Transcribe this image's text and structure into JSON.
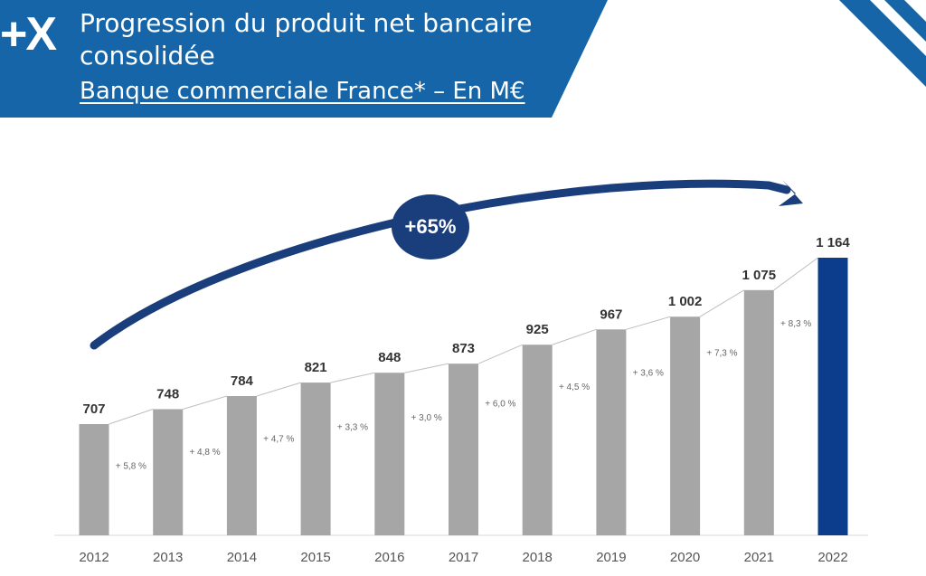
{
  "header": {
    "logo": "+X",
    "title": "Progression du produit net bancaire consolidée",
    "subtitle": "Banque commerciale France* – En M€"
  },
  "colors": {
    "header_blue": "#1565a8",
    "bar_gray": "#a6a6a6",
    "bar_highlight": "#0b3d8c",
    "arrow_navy": "#1a3d7c"
  },
  "chart_data": {
    "type": "bar",
    "categories": [
      "2012",
      "2013",
      "2014",
      "2015",
      "2016",
      "2017",
      "2018",
      "2019",
      "2020",
      "2021",
      "2022"
    ],
    "values": [
      707,
      748,
      784,
      821,
      848,
      873,
      925,
      967,
      1002,
      1075,
      1164
    ],
    "value_labels": [
      "707",
      "748",
      "784",
      "821",
      "848",
      "873",
      "925",
      "967",
      "1 002",
      "1 075",
      "1 164"
    ],
    "growth_labels": [
      "+ 5,8 %",
      "+ 4,8 %",
      "+ 4,7 %",
      "+ 3,3 %",
      "+ 3,0 %",
      "+ 6,0 %",
      "+ 4,5 %",
      "+ 3,6 %",
      "+ 7,3 %",
      "+ 8,3 %"
    ],
    "highlight_category": "2022",
    "total_growth_label": "+65%",
    "title": "Progression du produit net bancaire consolidée",
    "xlabel": "",
    "ylabel": "",
    "grid": false
  }
}
